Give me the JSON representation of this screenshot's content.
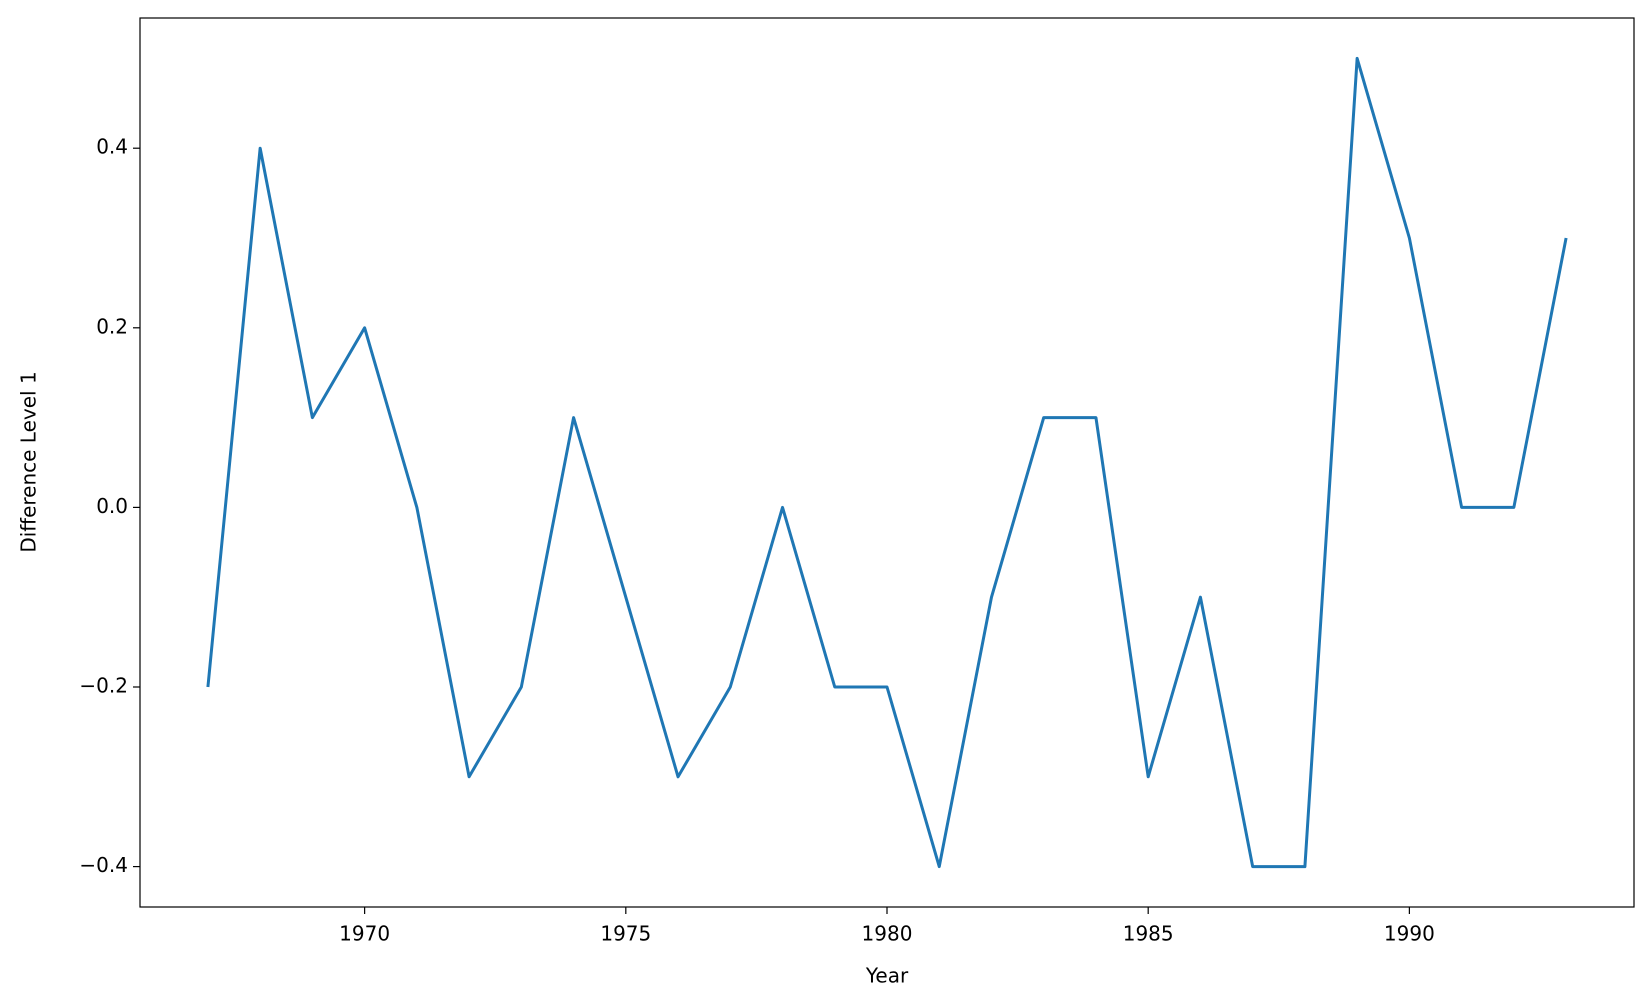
{
  "chart_data": {
    "type": "line",
    "xlabel": "Year",
    "ylabel": "Difference Level 1",
    "x": [
      1967,
      1968,
      1969,
      1970,
      1971,
      1972,
      1973,
      1974,
      1975,
      1976,
      1977,
      1978,
      1979,
      1980,
      1981,
      1982,
      1983,
      1984,
      1985,
      1986,
      1987,
      1988,
      1989,
      1990,
      1991,
      1992,
      1993
    ],
    "values": [
      -0.2,
      0.4,
      0.1,
      0.2,
      0.0,
      -0.3,
      -0.2,
      0.1,
      -0.1,
      -0.3,
      -0.2,
      0.0,
      -0.2,
      -0.2,
      -0.4,
      -0.1,
      0.1,
      0.1,
      -0.3,
      -0.1,
      -0.4,
      -0.4,
      0.5,
      0.3,
      0.0,
      0.0,
      0.3
    ],
    "color": "#1f77b4",
    "xlim": [
      1965.7,
      1994.3
    ],
    "xticks": [
      1970,
      1975,
      1980,
      1985,
      1990
    ],
    "ylim": [
      -0.445,
      0.545
    ],
    "yticks": [
      {
        "value": -0.4,
        "label": "−0.4"
      },
      {
        "value": -0.2,
        "label": "−0.2"
      },
      {
        "value": 0,
        "label": "0.0"
      },
      0.2,
      0.4
    ],
    "grid": false
  }
}
